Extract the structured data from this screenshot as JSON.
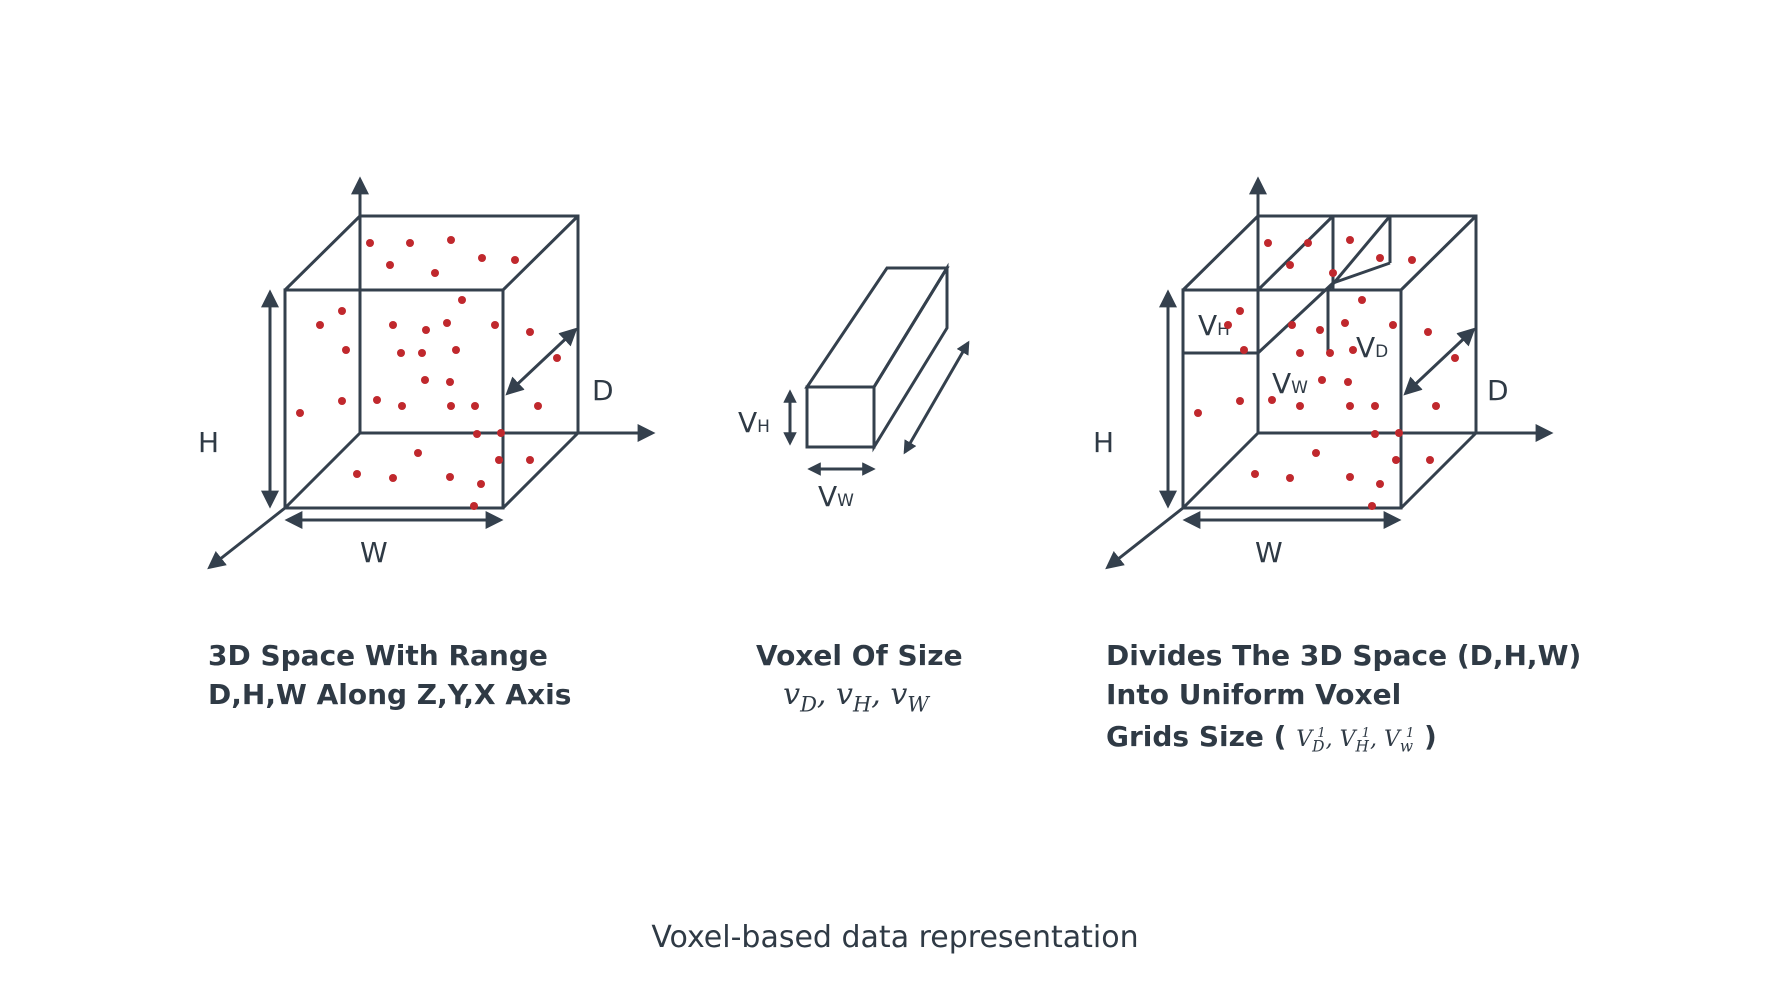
{
  "panels": {
    "left": {
      "label_h": "H",
      "label_w": "W",
      "label_d": "D",
      "caption_line1": "3D Space With Range",
      "caption_line2": "D,H,W Along Z,Y,X Axis"
    },
    "middle": {
      "label_vh": "V",
      "label_vh_sub": "H",
      "label_vw": "V",
      "label_vw_sub": "W",
      "caption_line1": "Voxel Of Size",
      "caption_math": "vD, vH, vW"
    },
    "right": {
      "label_h": "H",
      "label_w": "W",
      "label_d": "D",
      "label_vh": "V",
      "label_vh_sub": "H",
      "label_vd": "V",
      "label_vd_sub": "D",
      "label_vw": "V",
      "label_vw_sub": "W",
      "caption_line1": "Divides The 3D Space (D,H,W)",
      "caption_line2": "Into Uniform Voxel",
      "caption_line3_prefix": "Grids Size (",
      "caption_line3_math": "V1D, V1H, V1w",
      "caption_line3_suffix": ")"
    }
  },
  "footer": "Voxel-based data representation",
  "colors": {
    "line": "#34404d",
    "point": "#c0282d",
    "text": "#2f3a45"
  }
}
